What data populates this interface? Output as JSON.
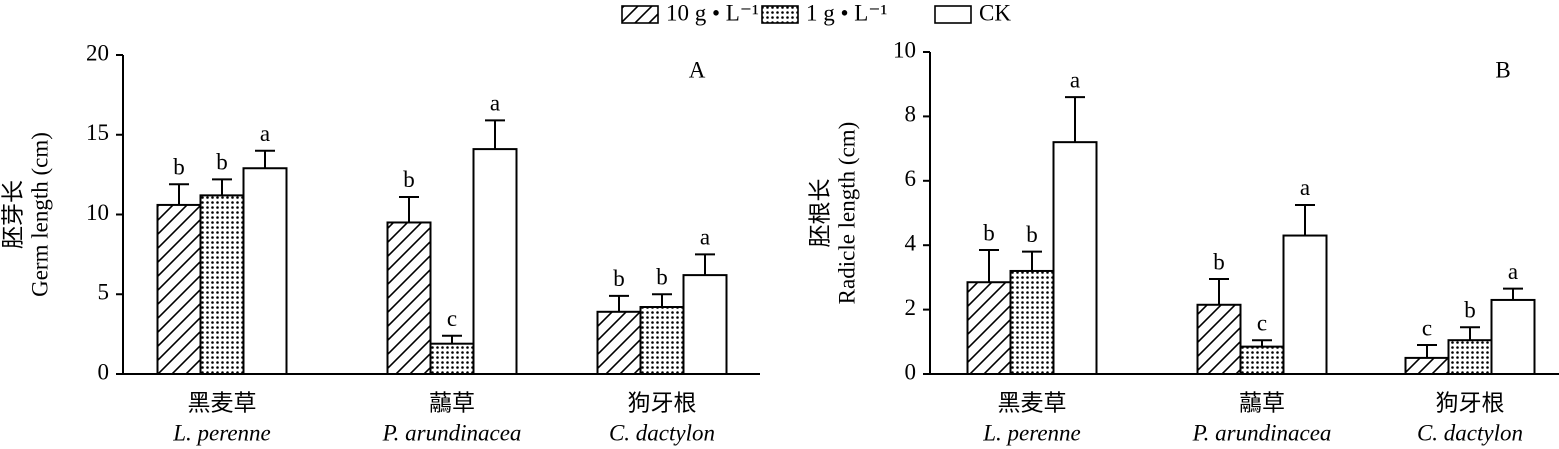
{
  "chart_data": [
    {
      "type": "bar",
      "panel": "A",
      "ylabel": [
        "胚芽长",
        "Germ length (cm)"
      ],
      "categories": [
        "黑麦草",
        "虉草",
        "狗牙根"
      ],
      "categories_latin": [
        "L. perenne",
        "P. arundinacea",
        "C. dactylon"
      ],
      "ylim": [
        0,
        20
      ],
      "yticks": [
        0,
        5,
        10,
        15,
        20
      ],
      "series": [
        {
          "name": "10 g • L⁻¹",
          "pattern": "hatch",
          "values": [
            10.6,
            9.5,
            3.9
          ],
          "errors": [
            1.3,
            1.6,
            1.0
          ],
          "annotations": [
            "b",
            "b",
            "b"
          ]
        },
        {
          "name": "1 g • L⁻¹",
          "pattern": "dots",
          "values": [
            11.2,
            1.9,
            4.2
          ],
          "errors": [
            1.0,
            0.5,
            0.8
          ],
          "annotations": [
            "b",
            "c",
            "b"
          ]
        },
        {
          "name": "CK",
          "pattern": "none",
          "values": [
            12.9,
            14.1,
            6.2
          ],
          "errors": [
            1.1,
            1.8,
            1.3
          ],
          "annotations": [
            "a",
            "a",
            "a"
          ]
        }
      ]
    },
    {
      "type": "bar",
      "panel": "B",
      "ylabel": [
        "胚根长",
        "Radicle length (cm)"
      ],
      "categories": [
        "黑麦草",
        "虉草",
        "狗牙根"
      ],
      "categories_latin": [
        "L. perenne",
        "P. arundinacea",
        "C. dactylon"
      ],
      "ylim": [
        0,
        10
      ],
      "yticks": [
        0,
        2,
        4,
        6,
        8,
        10
      ],
      "series": [
        {
          "pattern": "hatch",
          "values": [
            2.85,
            2.15,
            0.5
          ],
          "errors": [
            1.0,
            0.8,
            0.4
          ],
          "annotations": [
            "b",
            "b",
            "c"
          ]
        },
        {
          "pattern": "dots",
          "values": [
            3.2,
            0.85,
            1.05
          ],
          "errors": [
            0.6,
            0.2,
            0.4
          ],
          "annotations": [
            "b",
            "c",
            "b"
          ]
        },
        {
          "pattern": "none",
          "values": [
            7.2,
            4.3,
            2.3
          ],
          "errors": [
            1.4,
            0.95,
            0.35
          ],
          "annotations": [
            "a",
            "a",
            "a"
          ]
        }
      ]
    }
  ]
}
